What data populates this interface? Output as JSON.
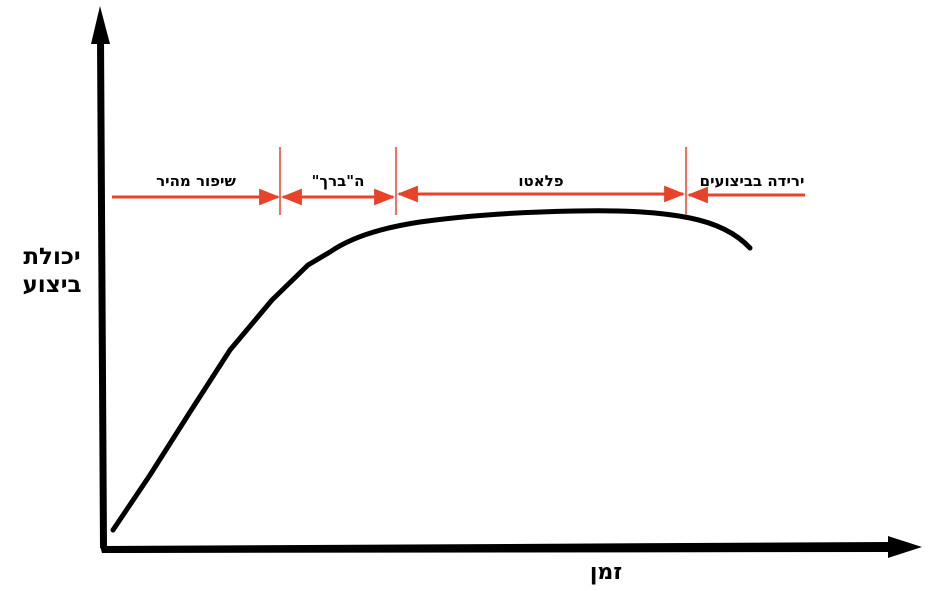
{
  "diagram": {
    "y_axis_label_line1": "יכולת",
    "y_axis_label_line2": "ביצוע",
    "x_axis_label": "זמן",
    "phases": [
      {
        "label": "שיפור מהיר"
      },
      {
        "label": "ה\"ברך\""
      },
      {
        "label": "פלאטו"
      },
      {
        "label": "ירידה בביצועים"
      }
    ],
    "colors": {
      "axis": "#000000",
      "curve": "#000000",
      "phase_arrows": "#e8432a",
      "phase_dividers": "#e8432a"
    }
  }
}
